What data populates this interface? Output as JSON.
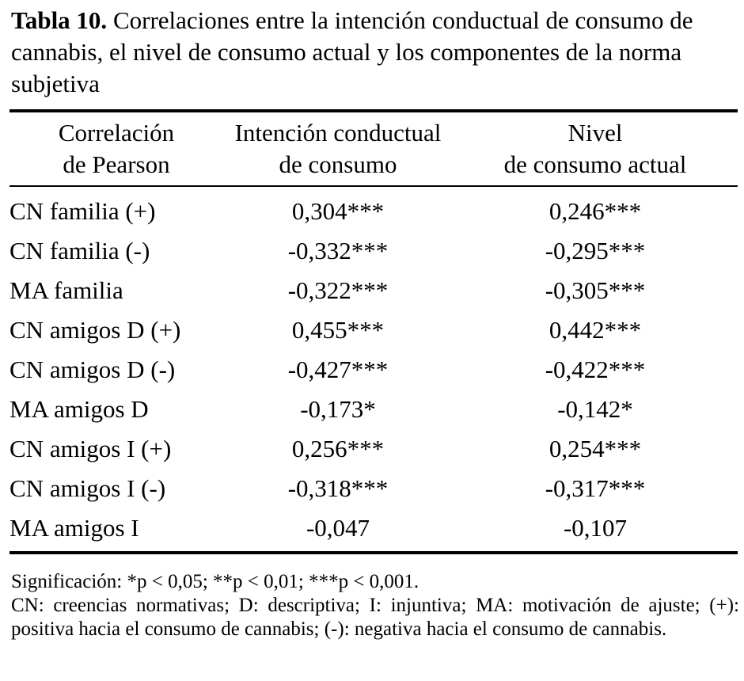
{
  "title": {
    "label": "Tabla 10.",
    "text": "Correlaciones entre la intención conductual de consumo de cannabis, el nivel de consumo actual y los componentes de la norma subjetiva"
  },
  "table": {
    "headers": [
      {
        "line1": "Correlación",
        "line2": "de Pearson"
      },
      {
        "line1": "Intención conductual",
        "line2": "de consumo"
      },
      {
        "line1": "Nivel",
        "line2": "de consumo actual"
      }
    ],
    "rows": [
      {
        "label": "CN familia (+)",
        "intencion": "0,304***",
        "nivel": "0,246***"
      },
      {
        "label": "CN familia (-)",
        "intencion": "-0,332***",
        "nivel": "-0,295***"
      },
      {
        "label": "MA familia",
        "intencion": "-0,322***",
        "nivel": "-0,305***"
      },
      {
        "label": "CN amigos D (+)",
        "intencion": "0,455***",
        "nivel": "0,442***"
      },
      {
        "label": "CN amigos D (-)",
        "intencion": "-0,427***",
        "nivel": "-0,422***"
      },
      {
        "label": "MA amigos D",
        "intencion": "-0,173*",
        "nivel": "-0,142*"
      },
      {
        "label": "CN amigos I (+)",
        "intencion": "0,256***",
        "nivel": "0,254***"
      },
      {
        "label": "CN amigos I (-)",
        "intencion": "-0,318***",
        "nivel": "-0,317***"
      },
      {
        "label": "MA amigos I",
        "intencion": "-0,047",
        "nivel": "-0,107"
      }
    ]
  },
  "notes": {
    "significance": "Significación: *p < 0,05; **p < 0,01; ***p < 0,001.",
    "abbreviations": "CN: creencias normativas; D: descriptiva; I: injuntiva; MA: motivación de ajuste; (+): positiva hacia el consumo de cannabis; (-): negativa hacia el consumo de cannabis."
  }
}
